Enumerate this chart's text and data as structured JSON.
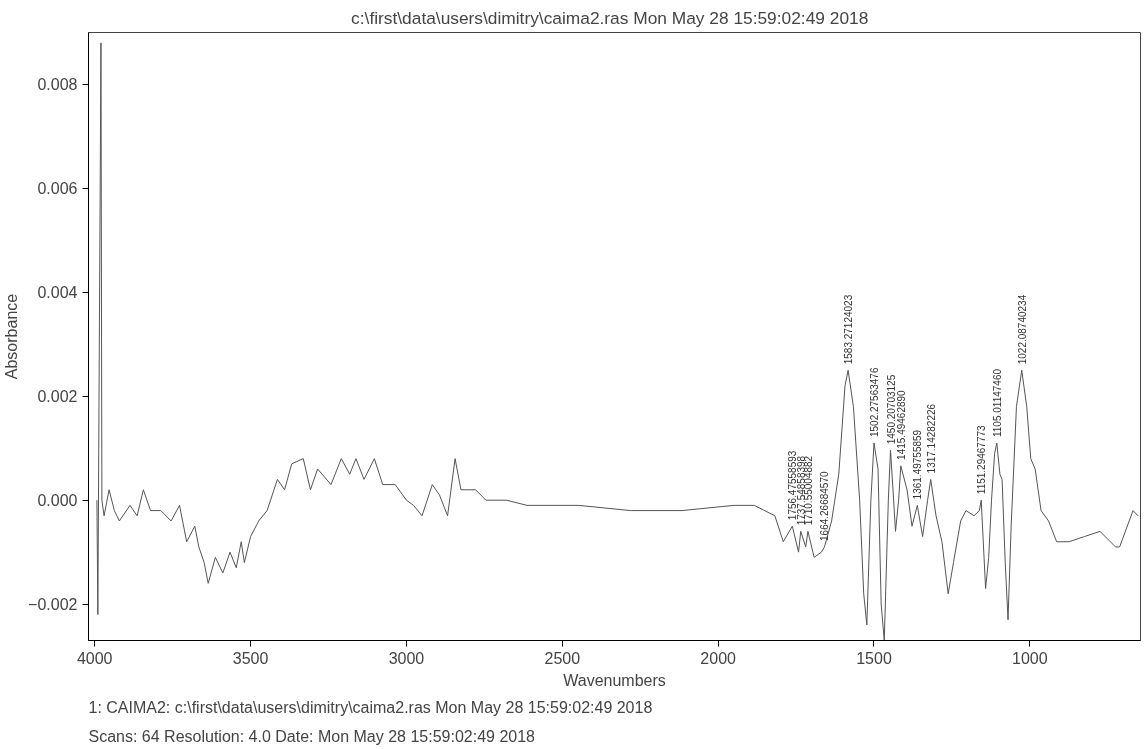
{
  "chart_data": {
    "type": "line",
    "title": "c:\\first\\data\\users\\dimitry\\caima2.ras   Mon May 28 15:59:02:49 2018",
    "xlabel": "Wavenumbers",
    "ylabel": "Absorbance",
    "xlim": [
      4020,
      645
    ],
    "ylim": [
      -0.0027,
      0.009
    ],
    "xticks": [
      4000,
      3500,
      3000,
      2500,
      2000,
      1500,
      1000
    ],
    "yticks": [
      -0.002,
      {
        "value": 0,
        "label": "0.000"
      },
      0.002,
      0.004,
      0.006,
      0.008
    ],
    "grid": false,
    "marker": "none",
    "line_style": "solid",
    "series": [
      {
        "color": "#555555",
        "x": [
          3993,
          3990,
          3980,
          3977,
          3970,
          3954,
          3937,
          3921,
          3887,
          3864,
          3844,
          3821,
          3788,
          3755,
          3728,
          3705,
          3679,
          3666,
          3649,
          3636,
          3613,
          3589,
          3566,
          3546,
          3530,
          3520,
          3500,
          3474,
          3447,
          3414,
          3391,
          3368,
          3331,
          3308,
          3285,
          3242,
          3209,
          3182,
          3162,
          3136,
          3103,
          3076,
          3036,
          3000,
          2977,
          2950,
          2917,
          2894,
          2868,
          2844,
          2825,
          2778,
          2745,
          2679,
          2613,
          2447,
          2281,
          2116,
          1950,
          1884,
          1818,
          1791,
          1762,
          1742,
          1735,
          1719,
          1712,
          1692,
          1669,
          1659,
          1636,
          1613,
          1593,
          1583,
          1566,
          1546,
          1533,
          1523,
          1510,
          1500,
          1487,
          1477,
          1467,
          1454,
          1447,
          1437,
          1431,
          1421,
          1414,
          1394,
          1378,
          1361,
          1344,
          1328,
          1318,
          1301,
          1282,
          1262,
          1245,
          1222,
          1205,
          1179,
          1162,
          1156,
          1142,
          1132,
          1123,
          1113,
          1106,
          1096,
          1089,
          1079,
          1070,
          1060,
          1043,
          1026,
          1010,
          997,
          983,
          964,
          940,
          914,
          874,
          825,
          775,
          725,
          712,
          669,
          653
        ],
        "values": [
          0.0,
          -0.0022,
          0.0088,
          0.0,
          -0.0003,
          0.0002,
          -0.0002,
          -0.0004,
          -0.0001,
          -0.0003,
          0.0002,
          -0.0002,
          -0.0002,
          -0.0004,
          -0.0001,
          -0.0008,
          -0.0005,
          -0.0009,
          -0.0012,
          -0.0016,
          -0.0011,
          -0.0014,
          -0.001,
          -0.0013,
          -0.0008,
          -0.0012,
          -0.0007,
          -0.0004,
          -0.0002,
          0.0004,
          0.0002,
          0.0007,
          0.0008,
          0.0002,
          0.0006,
          0.0003,
          0.0008,
          0.0005,
          0.0008,
          0.0004,
          0.0008,
          0.0003,
          0.0003,
          0.0,
          -0.0001,
          -0.0003,
          0.0003,
          0.0001,
          -0.0003,
          0.0008,
          0.0002,
          0.0002,
          0.0,
          0.0,
          -0.0001,
          -0.0001,
          -0.0002,
          -0.0002,
          -0.0001,
          -0.0001,
          -0.0003,
          -0.0008,
          -0.0005,
          -0.001,
          -0.0006,
          -0.0009,
          -0.0006,
          -0.0011,
          -0.001,
          -0.0009,
          -0.0004,
          0.0005,
          0.0022,
          0.0025,
          0.0018,
          0.0,
          -0.0018,
          -0.0024,
          0.0,
          0.0011,
          0.0006,
          -0.002,
          -0.0027,
          0.0,
          0.00096,
          0.0,
          -0.0006,
          0.0,
          0.00066,
          0.0002,
          -0.0005,
          -0.0001,
          -0.0007,
          0.0,
          0.0004,
          -0.0003,
          -0.0008,
          -0.0018,
          -0.0012,
          -0.0004,
          -0.0002,
          -0.0003,
          -0.0002,
          0.0,
          -0.0017,
          -0.0011,
          0.0,
          0.0009,
          0.0011,
          0.0005,
          0.0004,
          -0.0012,
          -0.0023,
          -0.0005,
          0.0018,
          0.0025,
          0.0018,
          0.0008,
          0.0006,
          -0.0002,
          -0.0004,
          -0.0008,
          -0.0008,
          -0.0007,
          -0.0006,
          -0.0009,
          -0.0009,
          -0.0002,
          -0.0003
        ]
      }
    ],
    "annotations": [
      {
        "text": "1756.47558593",
        "x": 1762,
        "y": -0.0005
      },
      {
        "text": "1737.54858398",
        "x": 1735,
        "y": -0.0006
      },
      {
        "text": "1710.55004882",
        "x": 1712,
        "y": -0.0006
      },
      {
        "text": "1664.26684570",
        "x": 1659,
        "y": -0.0009
      },
      {
        "text": "1583.27124023",
        "x": 1583,
        "y": 0.0025
      },
      {
        "text": "1502.27563476",
        "x": 1500,
        "y": 0.0011
      },
      {
        "text": "1450.20703125",
        "x": 1447,
        "y": 0.00096
      },
      {
        "text": "1415.49462890",
        "x": 1414,
        "y": 0.00066
      },
      {
        "text": "1361.49755859",
        "x": 1361,
        "y": -0.0001
      },
      {
        "text": "1317.14282226",
        "x": 1318,
        "y": 0.0004
      },
      {
        "text": "1151.29467773",
        "x": 1156,
        "y": 0.0
      },
      {
        "text": "1105.01147460",
        "x": 1106,
        "y": 0.0011
      },
      {
        "text": "1022.08740234",
        "x": 1026,
        "y": 0.0025
      },
      "1: CAIMA2: c:\\first\\data\\users\\dimitry\\caima2.ras   Mon May 28 15:59:02:49 2018",
      "Scans: 64    Resolution: 4.0    Date: Mon May 28 15:59:02:49 2018"
    ]
  }
}
